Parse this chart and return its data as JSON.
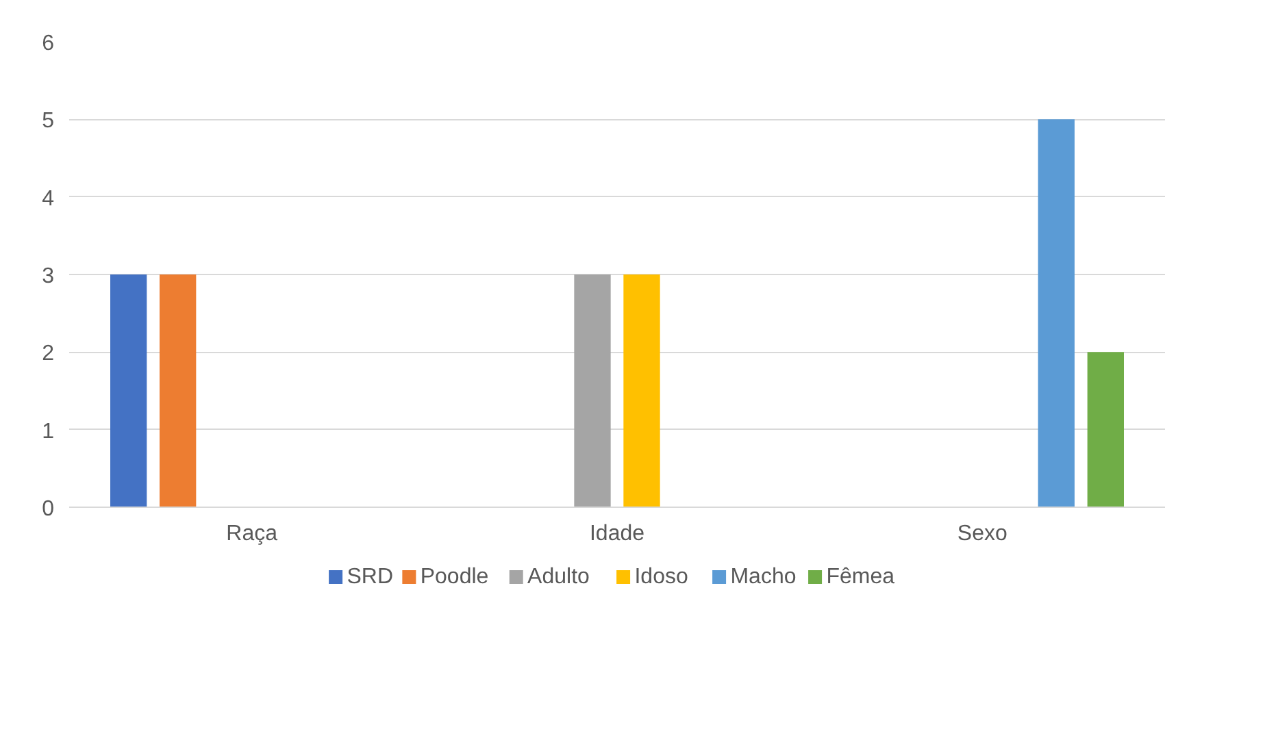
{
  "chart_data": {
    "type": "bar",
    "categories": [
      "Raça",
      "Idade",
      "Sexo"
    ],
    "series": [
      {
        "name": "SRD",
        "color": "#4472c4",
        "values": [
          3,
          null,
          null
        ]
      },
      {
        "name": "Poodle",
        "color": "#ed7d31",
        "values": [
          3,
          null,
          null
        ]
      },
      {
        "name": "Adulto",
        "color": "#a5a5a5",
        "values": [
          null,
          3,
          null
        ]
      },
      {
        "name": "Idoso",
        "color": "#ffc000",
        "values": [
          null,
          3,
          null
        ]
      },
      {
        "name": "Macho",
        "color": "#5b9bd5",
        "values": [
          null,
          null,
          5
        ]
      },
      {
        "name": "Fêmea",
        "color": "#70ad47",
        "values": [
          null,
          null,
          2
        ]
      }
    ],
    "ylim": [
      0,
      6
    ],
    "yticks": [
      0,
      1,
      2,
      3,
      4,
      5,
      6
    ],
    "grid": "y",
    "legend": "bottom"
  }
}
